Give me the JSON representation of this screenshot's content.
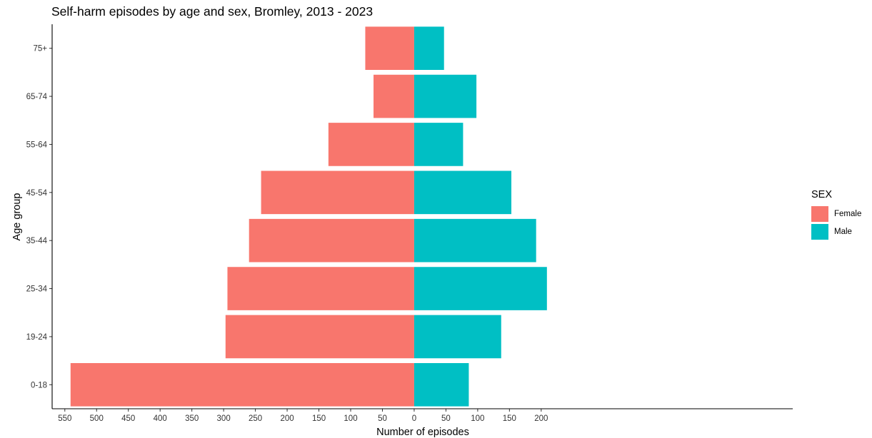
{
  "chart_data": {
    "type": "bar",
    "orientation": "horizontal",
    "title": "Self-harm episodes by age and sex, Bromley, 2013 - 2023",
    "xlabel": "Number of episodes",
    "ylabel": "Age group",
    "categories": [
      "0-18",
      "19-24",
      "25-34",
      "35-44",
      "45-54",
      "55-64",
      "65-74",
      "75+"
    ],
    "series": [
      {
        "name": "Female",
        "color": "#F8766D",
        "values": [
          541,
          297,
          294,
          260,
          241,
          135,
          64,
          77
        ]
      },
      {
        "name": "Male",
        "color": "#00BFC4",
        "values": [
          86,
          137,
          209,
          192,
          153,
          77,
          98,
          47
        ]
      }
    ],
    "x_ticks": [
      {
        "value": -550,
        "label": "550"
      },
      {
        "value": -500,
        "label": "500"
      },
      {
        "value": -450,
        "label": "450"
      },
      {
        "value": -400,
        "label": "400"
      },
      {
        "value": -350,
        "label": "350"
      },
      {
        "value": -300,
        "label": "300"
      },
      {
        "value": -250,
        "label": "250"
      },
      {
        "value": -200,
        "label": "200"
      },
      {
        "value": -150,
        "label": "150"
      },
      {
        "value": -100,
        "label": "100"
      },
      {
        "value": -50,
        "label": "50"
      },
      {
        "value": 0,
        "label": "0"
      },
      {
        "value": 50,
        "label": "50"
      },
      {
        "value": 100,
        "label": "100"
      },
      {
        "value": 150,
        "label": "150"
      },
      {
        "value": 200,
        "label": "200"
      }
    ],
    "xlim": [
      -570,
      596
    ],
    "grid": false,
    "legend": {
      "title": "SEX",
      "position": "right"
    }
  }
}
